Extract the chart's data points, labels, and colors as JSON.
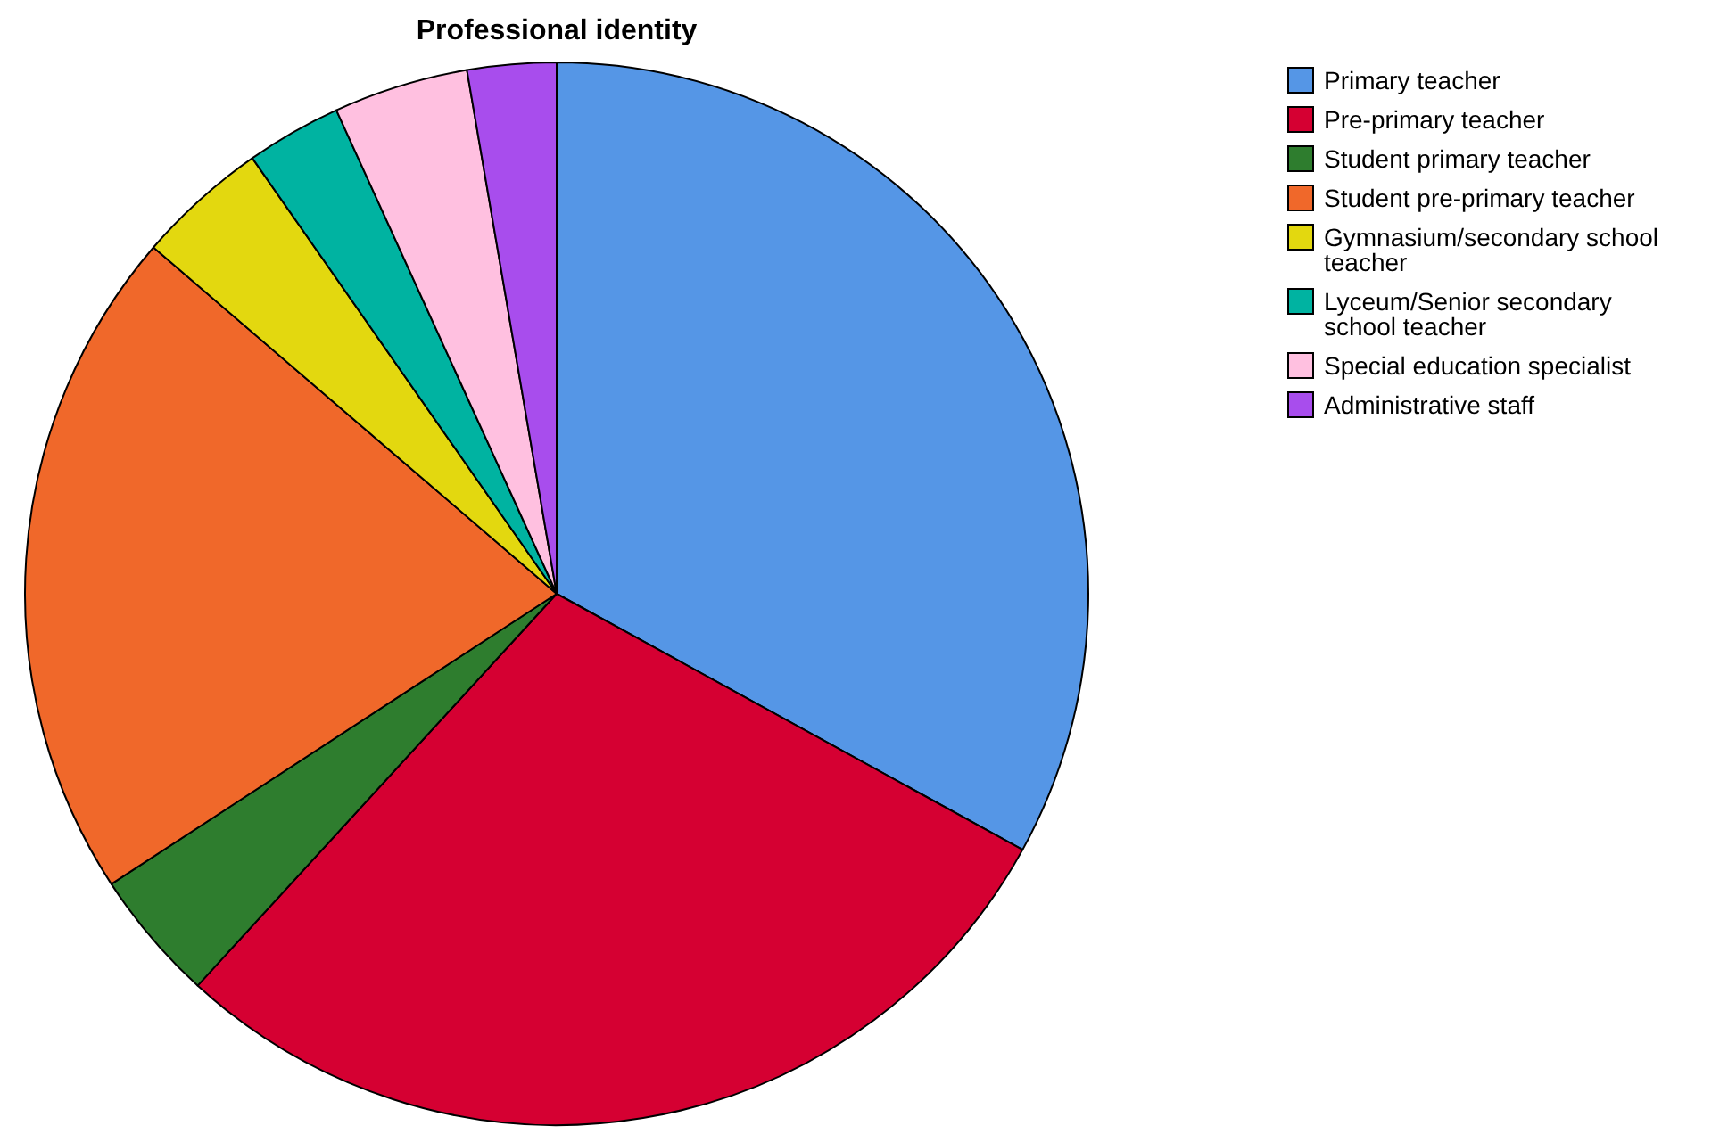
{
  "chart_data": {
    "type": "pie",
    "title": "Professional identity",
    "categories": [
      "Primary teacher",
      "Pre-primary teacher",
      "Student primary teacher",
      "Student pre-primary teacher",
      "Gymnasium/secondary school teacher",
      "Lyceum/Senior secondary school teacher",
      "Special education specialist",
      "Administrative staff"
    ],
    "values": [
      33.0,
      28.8,
      4.0,
      20.5,
      4.0,
      2.9,
      4.1,
      2.7
    ],
    "colors": [
      "#5596e6",
      "#d50032",
      "#2e7d2e",
      "#f0682a",
      "#e3d80f",
      "#00b3a1",
      "#ffc0e0",
      "#a84ded"
    ],
    "legend": "top right"
  }
}
